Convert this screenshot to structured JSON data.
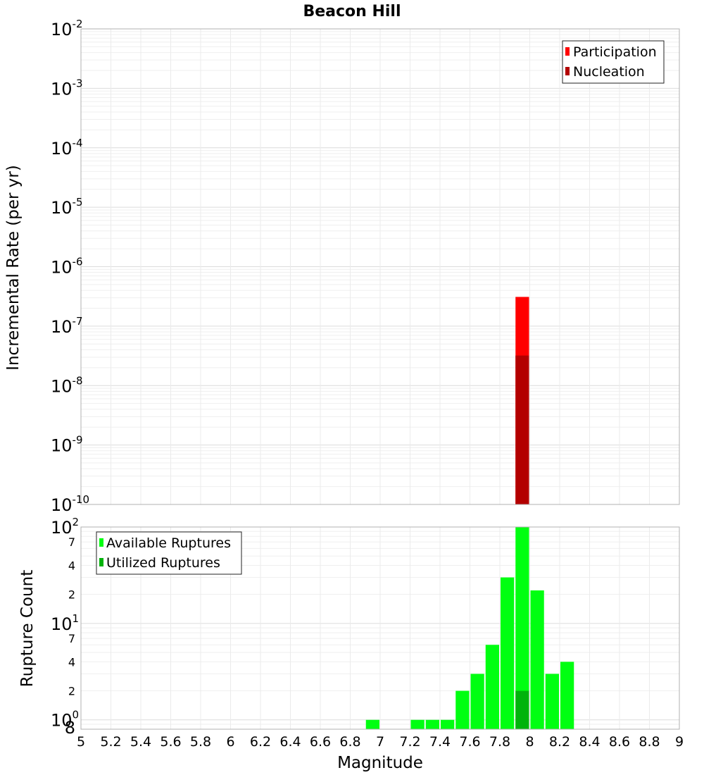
{
  "chart_data": [
    {
      "type": "bar",
      "title": "Beacon Hill",
      "ylabel": "Incremental Rate (per yr)",
      "yscale": "log",
      "ylim": [
        1e-10,
        0.01
      ],
      "y_tick_labels": [
        {
          "base": "10",
          "exp": "-10"
        },
        {
          "base": "10",
          "exp": "-9"
        },
        {
          "base": "10",
          "exp": "-8"
        },
        {
          "base": "10",
          "exp": "-7"
        },
        {
          "base": "10",
          "exp": "-6"
        },
        {
          "base": "10",
          "exp": "-5"
        },
        {
          "base": "10",
          "exp": "-4"
        },
        {
          "base": "10",
          "exp": "-3"
        },
        {
          "base": "10",
          "exp": "-2"
        }
      ],
      "grid": true,
      "legend": {
        "placement": "top-right",
        "entries": [
          "Participation",
          "Nucleation"
        ]
      },
      "series": [
        {
          "name": "Participation",
          "color": "#ff0000",
          "points": [
            {
              "x": 7.95,
              "y": 3.1e-07
            }
          ]
        },
        {
          "name": "Nucleation",
          "color": "#b30000",
          "points": [
            {
              "x": 7.95,
              "y": 3.2e-08
            }
          ]
        }
      ]
    },
    {
      "type": "bar",
      "xlabel": "Magnitude",
      "ylabel": "Rupture Count",
      "yscale": "log",
      "ylim": [
        0.8,
        100
      ],
      "xlim": [
        5,
        9
      ],
      "x_tick_labels": [
        "5",
        "5.2",
        "5.4",
        "5.6",
        "5.8",
        "6",
        "6.2",
        "6.4",
        "6.6",
        "6.8",
        "7",
        "7.2",
        "7.4",
        "7.6",
        "7.8",
        "8",
        "8.2",
        "8.4",
        "8.6",
        "8.8",
        "9"
      ],
      "y_tick_labels": {
        "decades": [
          {
            "base": "10",
            "exp": "0"
          },
          {
            "base": "10",
            "exp": "1"
          },
          {
            "base": "10",
            "exp": "2"
          }
        ],
        "minor": [
          {
            "value": 0.8,
            "label": "8"
          },
          {
            "value": 2,
            "label": "2"
          },
          {
            "value": 4,
            "label": "4"
          },
          {
            "value": 7,
            "label": "7"
          },
          {
            "value": 20,
            "label": "2"
          },
          {
            "value": 40,
            "label": "4"
          },
          {
            "value": 70,
            "label": "7"
          }
        ]
      },
      "grid": true,
      "legend": {
        "placement": "top-left",
        "entries": [
          "Available Ruptures",
          "Utilized Ruptures"
        ]
      },
      "series": [
        {
          "name": "Available Ruptures",
          "color": "#00ff11",
          "points": [
            {
              "x": 6.95,
              "y": 1
            },
            {
              "x": 7.25,
              "y": 1
            },
            {
              "x": 7.35,
              "y": 1
            },
            {
              "x": 7.45,
              "y": 1
            },
            {
              "x": 7.55,
              "y": 2
            },
            {
              "x": 7.65,
              "y": 3
            },
            {
              "x": 7.75,
              "y": 6
            },
            {
              "x": 7.85,
              "y": 30
            },
            {
              "x": 7.95,
              "y": 100
            },
            {
              "x": 8.05,
              "y": 22
            },
            {
              "x": 8.15,
              "y": 3
            },
            {
              "x": 8.25,
              "y": 4
            }
          ]
        },
        {
          "name": "Utilized Ruptures",
          "color": "#00b30c",
          "points": [
            {
              "x": 7.95,
              "y": 2
            }
          ]
        }
      ]
    }
  ]
}
